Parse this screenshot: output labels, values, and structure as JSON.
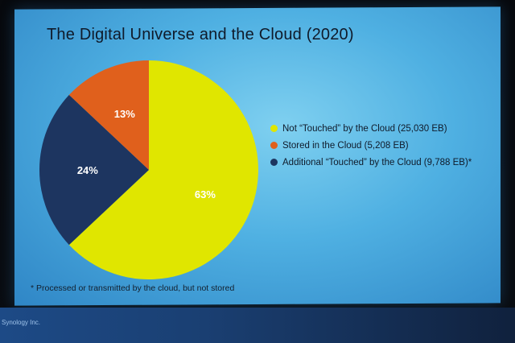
{
  "slide": {
    "title": "The Digital Universe and the Cloud (2020)",
    "footnote": "* Processed or transmitted by the cloud, but not stored",
    "brand": "Synology Inc."
  },
  "chart_data": {
    "type": "pie",
    "title": "The Digital Universe and the Cloud (2020)",
    "slices": [
      {
        "label": "Not “Touched” by the Cloud (25,030 EB)",
        "value": 63,
        "pct_label": "63%",
        "color": "#e0e600"
      },
      {
        "label": "Additional “Touched” by the Cloud (9,788 EB)*",
        "value": 24,
        "pct_label": "24%",
        "color": "#1d3560"
      },
      {
        "label": "Stored in the Cloud (5,208 EB)",
        "value": 13,
        "pct_label": "13%",
        "color": "#e0601c"
      }
    ],
    "legend_order": [
      0,
      2,
      1
    ],
    "legend_position": "right"
  }
}
